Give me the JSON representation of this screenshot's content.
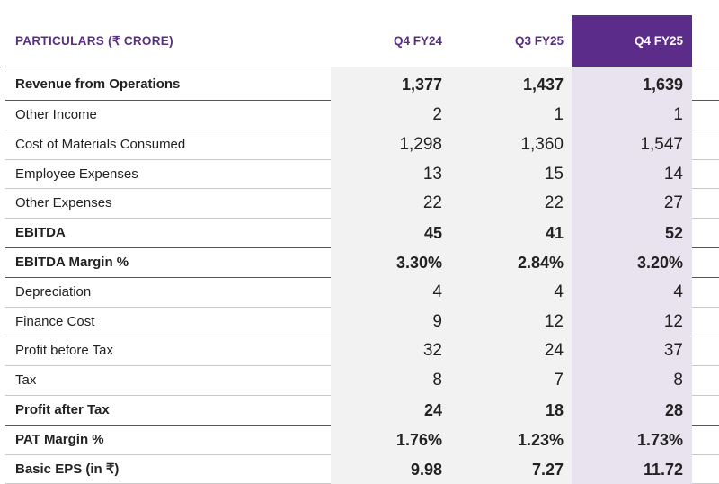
{
  "table": {
    "headers": [
      "PARTICULARS (₹ CRORE)",
      "Q4 FY24",
      "Q3 FY25",
      "Q4 FY25"
    ],
    "rows": [
      {
        "label": "Revenue from Operations",
        "values": [
          "1,377",
          "1,437",
          "1,639"
        ],
        "bold": true
      },
      {
        "label": "Other Income",
        "values": [
          "2",
          "1",
          "1"
        ],
        "bold": false
      },
      {
        "label": "Cost of Materials Consumed",
        "values": [
          "1,298",
          "1,360",
          "1,547"
        ],
        "bold": false
      },
      {
        "label": "Employee Expenses",
        "values": [
          "13",
          "15",
          "14"
        ],
        "bold": false
      },
      {
        "label": "Other Expenses",
        "values": [
          "22",
          "22",
          "27"
        ],
        "bold": false
      },
      {
        "label": "EBITDA",
        "values": [
          "45",
          "41",
          "52"
        ],
        "bold": true
      },
      {
        "label": "EBITDA Margin %",
        "values": [
          "3.30%",
          "2.84%",
          "3.20%"
        ],
        "bold": true
      },
      {
        "label": "Depreciation",
        "values": [
          "4",
          "4",
          "4"
        ],
        "bold": false
      },
      {
        "label": "Finance Cost",
        "values": [
          "9",
          "12",
          "12"
        ],
        "bold": false
      },
      {
        "label": "Profit before Tax",
        "values": [
          "32",
          "24",
          "37"
        ],
        "bold": false
      },
      {
        "label": "Tax",
        "values": [
          "8",
          "7",
          "8"
        ],
        "bold": false
      },
      {
        "label": "Profit after Tax",
        "values": [
          "24",
          "18",
          "28"
        ],
        "bold": true
      },
      {
        "label": "PAT Margin %",
        "values": [
          "1.76%",
          "1.23%",
          "1.73%"
        ],
        "bold": true
      },
      {
        "label": "Basic EPS (in ₹)",
        "values": [
          "9.98",
          "7.27",
          "11.72"
        ],
        "bold": true
      }
    ]
  },
  "colors": {
    "accent": "#5b2c8a",
    "header_text": "#5a2d86",
    "highlight_bg": "#e9e3ef",
    "shade_bg": "#f2f2f2"
  }
}
